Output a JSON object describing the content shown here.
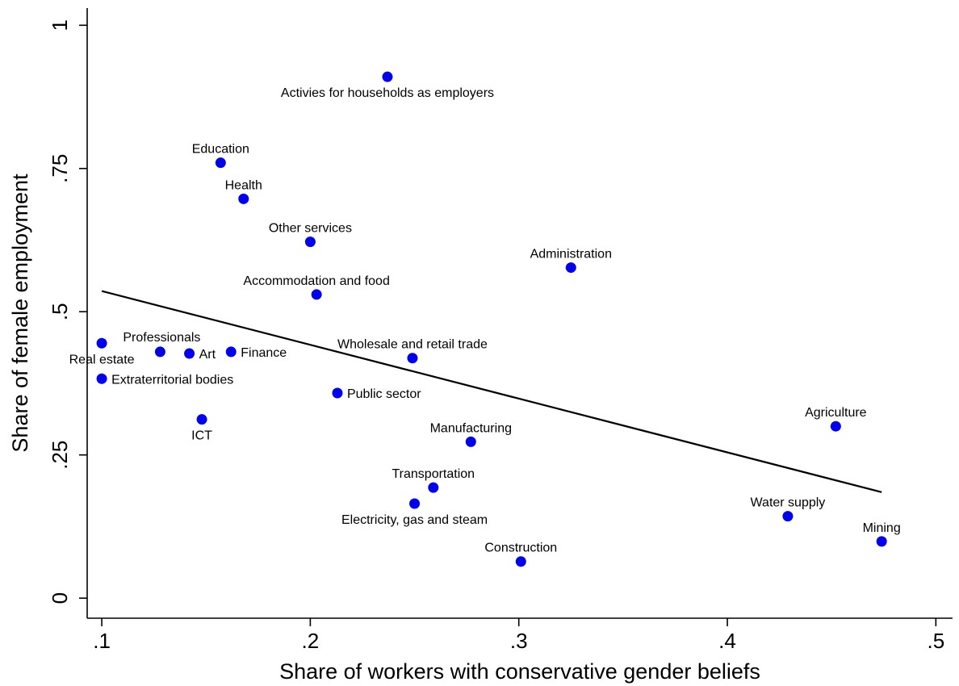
{
  "chart_data": {
    "type": "scatter",
    "title": "",
    "xlabel": "Share of workers with conservative gender beliefs",
    "ylabel": "Share of female employment",
    "xlim": [
      0.093,
      0.508
    ],
    "ylim": [
      -0.035,
      1.03
    ],
    "x_ticks": [
      {
        "v": 0.1,
        "label": ".1"
      },
      {
        "v": 0.2,
        "label": ".2"
      },
      {
        "v": 0.3,
        "label": ".3"
      },
      {
        "v": 0.4,
        "label": ".4"
      },
      {
        "v": 0.5,
        "label": ".5"
      }
    ],
    "y_ticks": [
      {
        "v": 0,
        "label": "0"
      },
      {
        "v": 0.25,
        "label": ".25"
      },
      {
        "v": 0.5,
        "label": ".5"
      },
      {
        "v": 0.75,
        "label": ".75"
      },
      {
        "v": 1,
        "label": "1"
      }
    ],
    "grid": false,
    "points": [
      {
        "label": "Activies for households as employers",
        "x": 0.237,
        "y": 0.91,
        "pos": "below"
      },
      {
        "label": "Education",
        "x": 0.157,
        "y": 0.76,
        "pos": "above"
      },
      {
        "label": "Health",
        "x": 0.168,
        "y": 0.697,
        "pos": "above"
      },
      {
        "label": "Other services",
        "x": 0.2,
        "y": 0.622,
        "pos": "above"
      },
      {
        "label": "Administration",
        "x": 0.325,
        "y": 0.577,
        "pos": "above"
      },
      {
        "label": "Accommodation and food",
        "x": 0.203,
        "y": 0.53,
        "pos": "above"
      },
      {
        "label": "Professionals",
        "x": 0.128,
        "y": 0.43,
        "pos": "above-right"
      },
      {
        "label": "Real estate",
        "x": 0.1,
        "y": 0.445,
        "pos": "below"
      },
      {
        "label": "Art",
        "x": 0.142,
        "y": 0.427,
        "pos": "right"
      },
      {
        "label": "Finance",
        "x": 0.162,
        "y": 0.43,
        "pos": "right"
      },
      {
        "label": "Wholesale and retail trade",
        "x": 0.249,
        "y": 0.419,
        "pos": "above"
      },
      {
        "label": "Extraterritorial bodies",
        "x": 0.1,
        "y": 0.383,
        "pos": "right"
      },
      {
        "label": "Public sector",
        "x": 0.213,
        "y": 0.358,
        "pos": "right"
      },
      {
        "label": "ICT",
        "x": 0.148,
        "y": 0.312,
        "pos": "below"
      },
      {
        "label": "Agriculture",
        "x": 0.452,
        "y": 0.3,
        "pos": "above"
      },
      {
        "label": "Manufacturing",
        "x": 0.277,
        "y": 0.273,
        "pos": "above"
      },
      {
        "label": "Transportation",
        "x": 0.259,
        "y": 0.193,
        "pos": "above"
      },
      {
        "label": "Electricity, gas and steam",
        "x": 0.25,
        "y": 0.165,
        "pos": "below"
      },
      {
        "label": "Water supply",
        "x": 0.429,
        "y": 0.143,
        "pos": "above"
      },
      {
        "label": "Mining",
        "x": 0.474,
        "y": 0.099,
        "pos": "above"
      },
      {
        "label": "Construction",
        "x": 0.301,
        "y": 0.064,
        "pos": "above"
      }
    ],
    "fit_line": {
      "x": [
        0.1,
        0.474
      ],
      "y": [
        0.536,
        0.185
      ]
    },
    "colors": {
      "points": "#0000ee",
      "line": "#000000"
    }
  }
}
